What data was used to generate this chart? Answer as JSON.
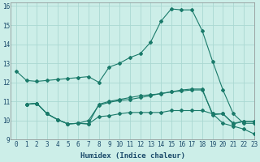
{
  "xlabel": "Humidex (Indice chaleur)",
  "bg_color": "#cceee8",
  "grid_color": "#aad8d2",
  "line_color": "#1a7a6a",
  "xlim": [
    -0.5,
    23
  ],
  "ylim": [
    9,
    16.2
  ],
  "yticks": [
    9,
    10,
    11,
    12,
    13,
    14,
    15,
    16
  ],
  "xticks": [
    0,
    1,
    2,
    3,
    4,
    5,
    6,
    7,
    8,
    9,
    10,
    11,
    12,
    13,
    14,
    15,
    16,
    17,
    18,
    19,
    20,
    21,
    22,
    23
  ],
  "line1_x": [
    0,
    1,
    2,
    3,
    4,
    5,
    6,
    7,
    8,
    9,
    10,
    11,
    12,
    13,
    14,
    15,
    16,
    17,
    18,
    19,
    20,
    21,
    22,
    23
  ],
  "line1_y": [
    12.6,
    12.1,
    12.05,
    12.1,
    12.15,
    12.2,
    12.25,
    12.3,
    12.0,
    12.8,
    13.0,
    13.3,
    13.5,
    14.1,
    15.2,
    15.85,
    15.8,
    15.8,
    14.7,
    13.1,
    11.6,
    10.35,
    9.85,
    9.85
  ],
  "line2_x": [
    1,
    2,
    3,
    4,
    5,
    6,
    7,
    8,
    9,
    10,
    11,
    12,
    13,
    14,
    15,
    16,
    17,
    18,
    19,
    20,
    21,
    22,
    23
  ],
  "line2_y": [
    10.85,
    10.9,
    10.35,
    10.05,
    9.82,
    9.85,
    9.82,
    10.85,
    11.0,
    11.1,
    11.2,
    11.3,
    11.35,
    11.4,
    11.5,
    11.6,
    11.65,
    11.65,
    10.3,
    10.35,
    9.82,
    9.95,
    9.95
  ],
  "line3_x": [
    1,
    2,
    3,
    4,
    5,
    6,
    7,
    8,
    9,
    10,
    11,
    12,
    13,
    14,
    15,
    16,
    17,
    18,
    19,
    20,
    21,
    22,
    23
  ],
  "line3_y": [
    10.85,
    10.9,
    10.35,
    10.05,
    9.82,
    9.85,
    9.82,
    10.2,
    10.25,
    10.35,
    10.42,
    10.42,
    10.42,
    10.42,
    10.52,
    10.52,
    10.52,
    10.52,
    10.35,
    9.85,
    9.7,
    9.55,
    9.3
  ],
  "line4_x": [
    1,
    2,
    3,
    4,
    5,
    6,
    7,
    8,
    9,
    10,
    11,
    12,
    13,
    14,
    15,
    16,
    17,
    18,
    19,
    20,
    21,
    22,
    23
  ],
  "line4_y": [
    10.85,
    10.9,
    10.35,
    10.05,
    9.82,
    9.85,
    10.0,
    10.8,
    10.95,
    11.05,
    11.1,
    11.2,
    11.3,
    11.42,
    11.5,
    11.55,
    11.6,
    11.6,
    10.35,
    10.35,
    9.85,
    9.95,
    9.95
  ],
  "marker": "D",
  "markersize": 2.0,
  "linewidth": 0.8,
  "tick_fontsize": 5.5,
  "xlabel_fontsize": 6.5
}
